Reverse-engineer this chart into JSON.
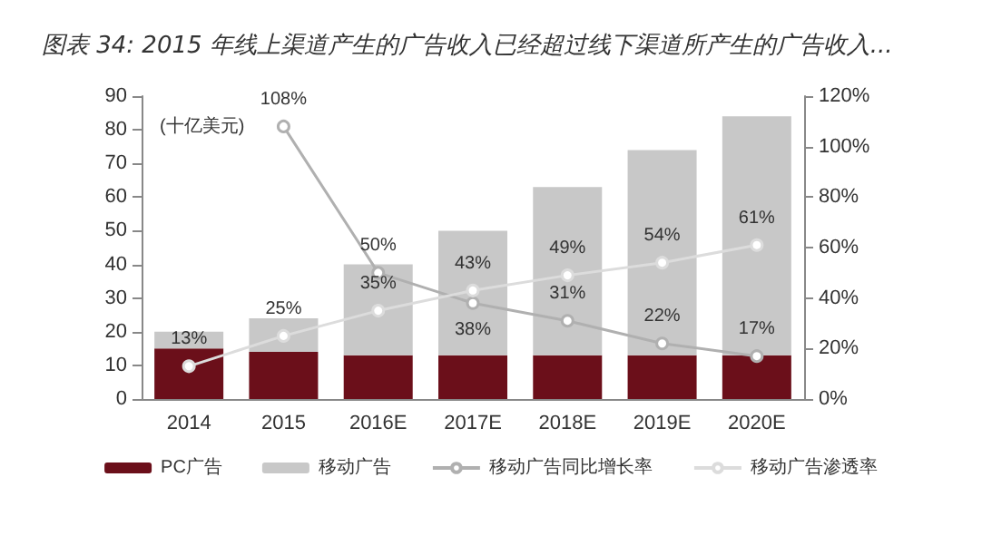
{
  "chart_data": {
    "type": "bar",
    "title": "图表 34: 2015 年线上渠道产生的广告收入已经超过线下渠道所产生的广告收入...",
    "ylabel": "(十亿美元)",
    "categories": [
      "2014",
      "2015",
      "2016E",
      "2017E",
      "2018E",
      "2019E",
      "2020E"
    ],
    "stacked": true,
    "ylim": [
      0,
      90
    ],
    "yticks": [
      0,
      10,
      20,
      30,
      40,
      50,
      60,
      70,
      80,
      90
    ],
    "y2lim": [
      0,
      120
    ],
    "y2ticks": [
      {
        "value": 0,
        "label": "0%"
      },
      {
        "value": 20,
        "label": "20%"
      },
      {
        "value": 40,
        "label": "40%"
      },
      {
        "value": 60,
        "label": "60%"
      },
      {
        "value": 80,
        "label": "80%"
      },
      {
        "value": 100,
        "label": "100%"
      },
      {
        "value": 120,
        "label": "120%"
      }
    ],
    "grid": false,
    "legend": "bottom",
    "marker": "circle",
    "series": [
      {
        "name": "PC广告",
        "color": "#6b0f1a",
        "values": [
          15,
          14,
          13,
          13,
          13,
          13,
          13
        ]
      },
      {
        "name": "移动广告",
        "color": "#c8c8c8",
        "values": [
          5,
          10,
          27,
          37,
          50,
          61,
          71
        ]
      },
      {
        "name": "移动广告同比增长率",
        "type": "line",
        "axis": "y2",
        "color": "#b0b0b0",
        "values": [
          null,
          108,
          50,
          38,
          31,
          22,
          17
        ],
        "value_labels": [
          null,
          "108%",
          "50%",
          "38%",
          "31%",
          "22%",
          "17%"
        ]
      },
      {
        "name": "移动广告渗透率",
        "type": "line",
        "axis": "y2",
        "color": "#dcdcdc",
        "values": [
          13,
          25,
          35,
          43,
          49,
          54,
          61
        ],
        "value_labels": [
          "13%",
          "25%",
          "35%",
          "43%",
          "49%",
          "54%",
          "61%"
        ]
      }
    ]
  }
}
